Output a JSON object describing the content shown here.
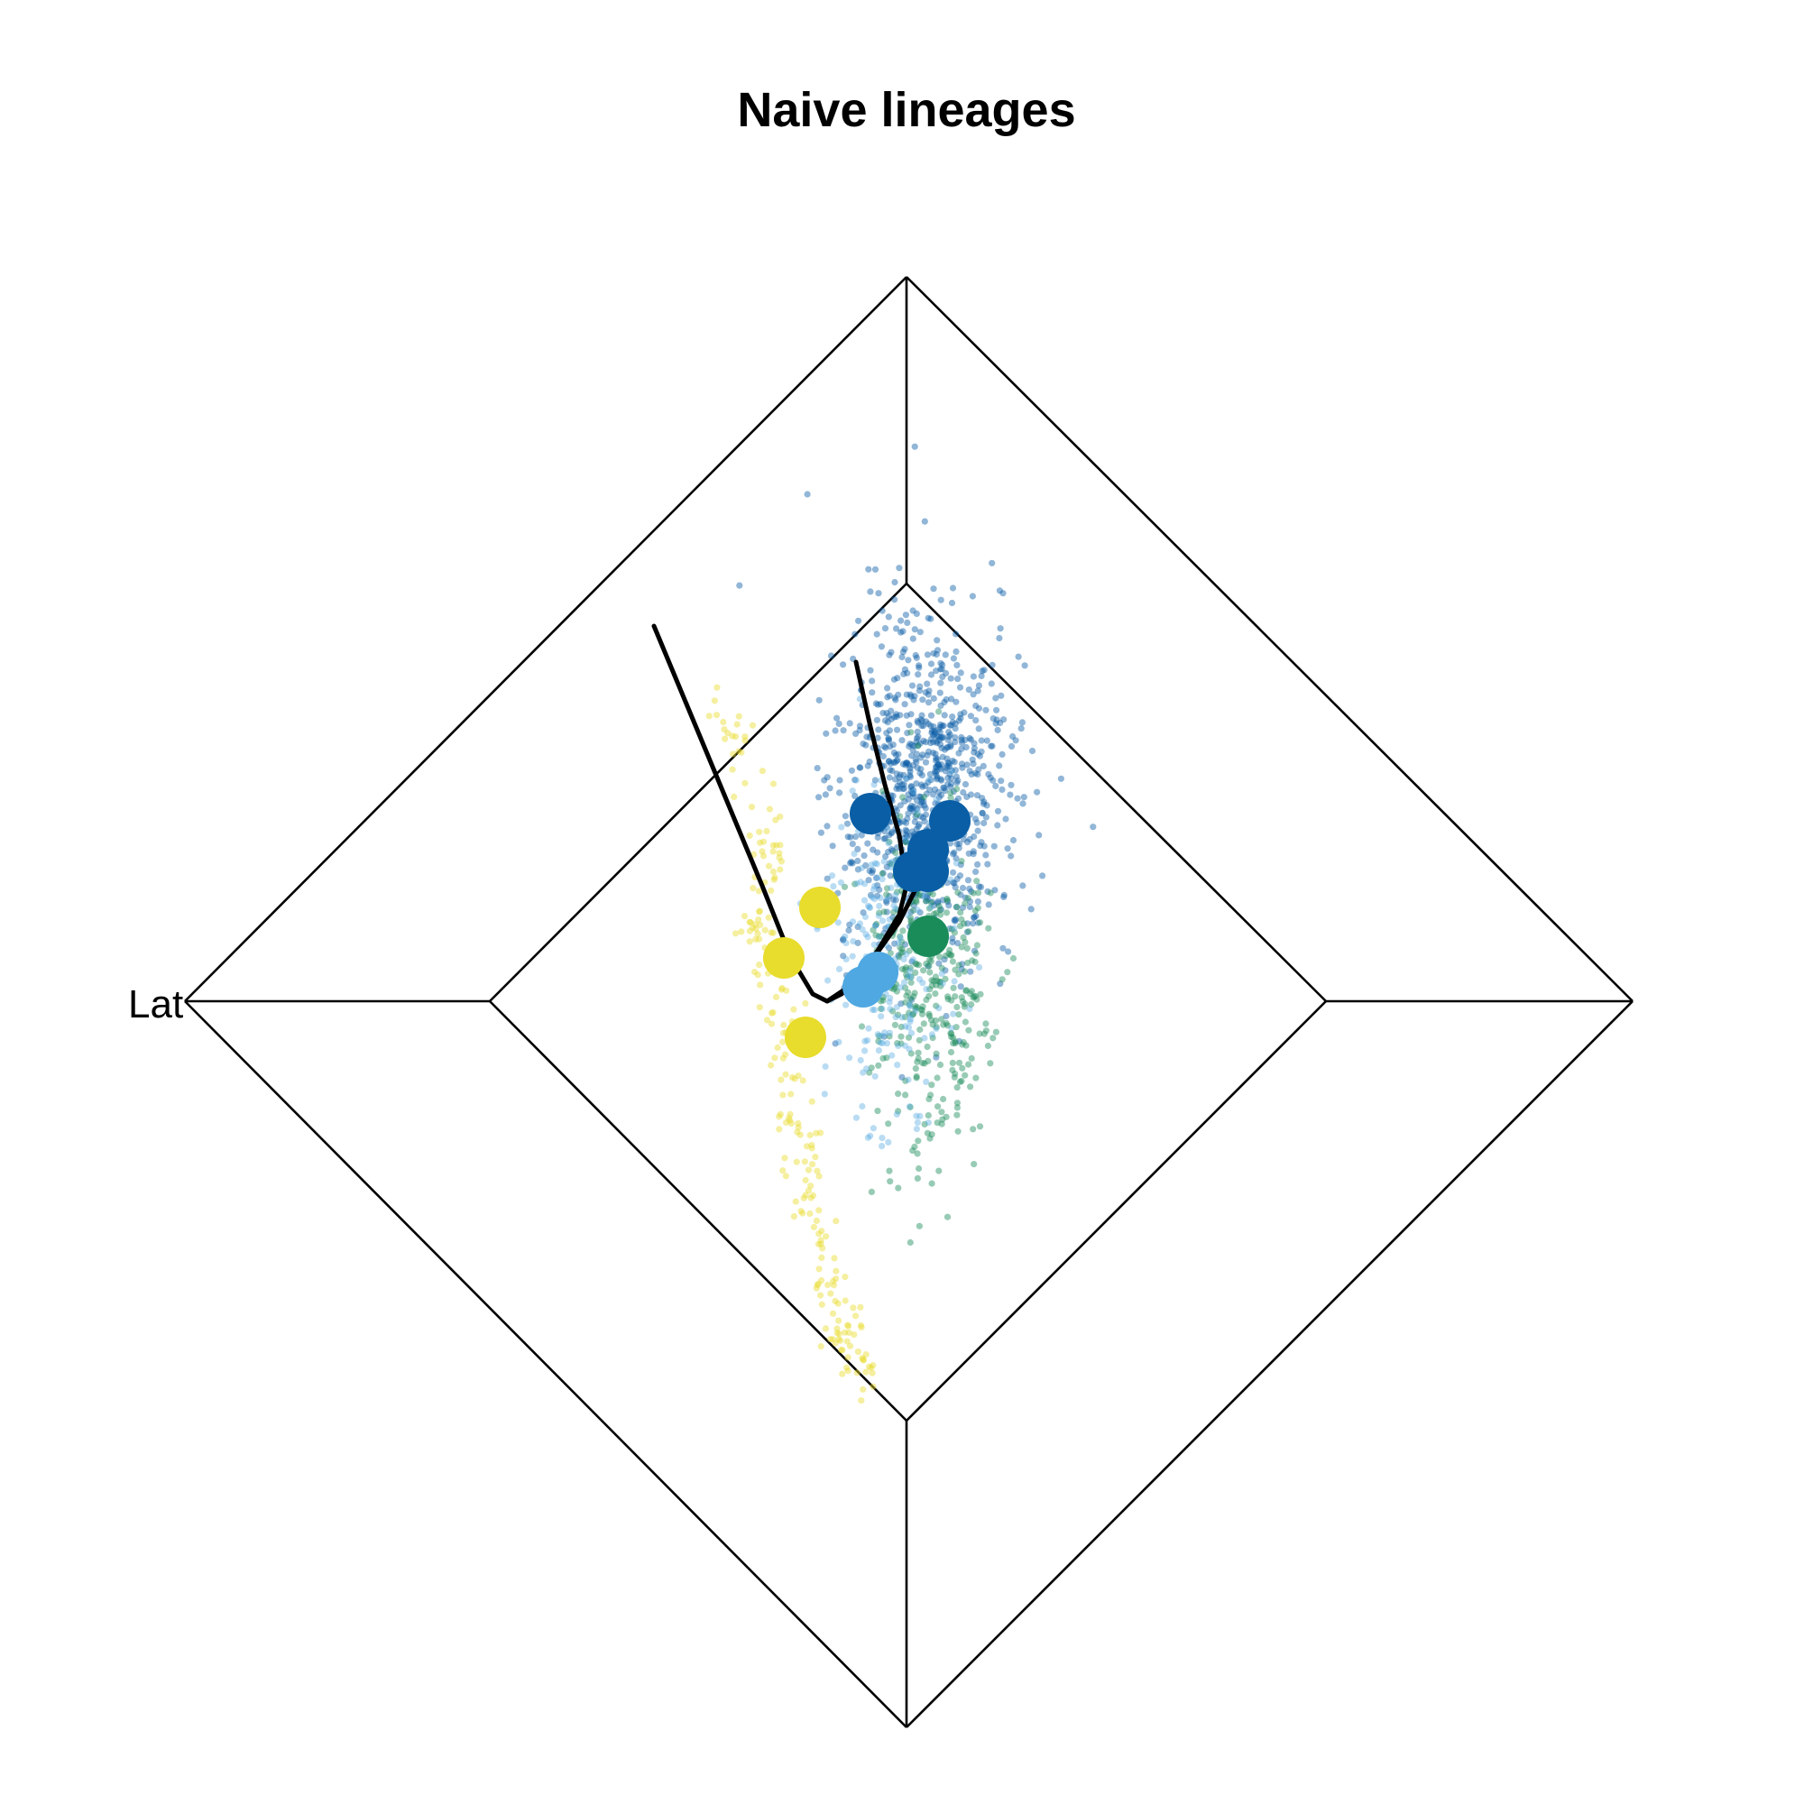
{
  "chart_data": {
    "type": "scatter",
    "title": "Naive lineages",
    "corner_label": "Lat",
    "grid": true,
    "legend": "none",
    "colors": {
      "yellow": "#e8dc2c",
      "lightblue": "#4fa8e2",
      "green": "#1a8c5a",
      "blue": "#0a5ea6"
    },
    "series": [
      {
        "color_key": "blue",
        "centers": [
          [
            -0.05,
            0.26
          ],
          [
            0.06,
            0.25
          ],
          [
            0.03,
            0.21
          ],
          [
            0.01,
            0.18
          ],
          [
            0.03,
            0.18
          ]
        ]
      },
      {
        "color_key": "green",
        "centers": [
          [
            0.03,
            0.09
          ]
        ]
      },
      {
        "color_key": "lightblue",
        "centers": [
          [
            -0.04,
            0.04
          ],
          [
            -0.06,
            0.02
          ]
        ]
      },
      {
        "color_key": "yellow",
        "centers": [
          [
            -0.12,
            0.13
          ],
          [
            -0.17,
            0.06
          ],
          [
            -0.14,
            -0.05
          ]
        ]
      }
    ],
    "curves": [
      [
        [
          -0.35,
          0.52
        ],
        [
          -0.3,
          0.4
        ],
        [
          -0.25,
          0.28
        ],
        [
          -0.2,
          0.16
        ],
        [
          -0.16,
          0.06
        ],
        [
          -0.13,
          0.01
        ],
        [
          -0.11,
          0.0
        ],
        [
          -0.09,
          0.01
        ],
        [
          -0.06,
          0.04
        ],
        [
          -0.01,
          0.11
        ],
        [
          0.03,
          0.19
        ]
      ],
      [
        [
          -0.07,
          0.47
        ],
        [
          -0.05,
          0.38
        ],
        [
          -0.03,
          0.3
        ],
        [
          -0.01,
          0.23
        ],
        [
          0.0,
          0.16
        ],
        [
          -0.01,
          0.12
        ],
        [
          -0.04,
          0.07
        ],
        [
          -0.08,
          0.02
        ],
        [
          -0.11,
          0.0
        ]
      ]
    ]
  }
}
